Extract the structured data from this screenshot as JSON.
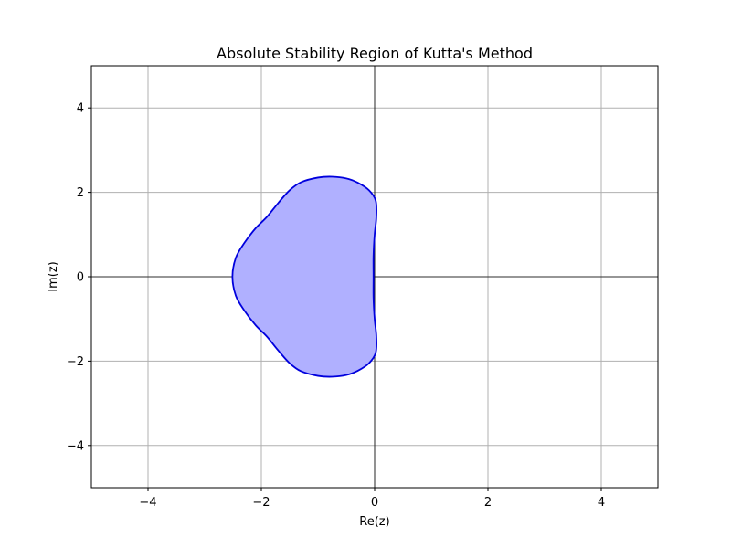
{
  "chart_data": {
    "type": "area",
    "title": "Absolute Stability Region of Kutta's Method",
    "xlabel": "Re(z)",
    "ylabel": "Im(z)",
    "xlim": [
      -5,
      5
    ],
    "ylim": [
      -5,
      5
    ],
    "xticks": [
      -4,
      -2,
      0,
      2,
      4
    ],
    "yticks": [
      -4,
      -2,
      0,
      2,
      4
    ],
    "xtick_labels": [
      "−4",
      "−2",
      "0",
      "2",
      "4"
    ],
    "ytick_labels": [
      "−4",
      "−2",
      "0",
      "2",
      "4"
    ],
    "grid": true,
    "reference_lines": [
      0
    ],
    "fill_color": "#b0b0ff",
    "edge_color": "#0000dd",
    "series": [
      {
        "boundary": [
          [
            -2.51,
            0.0
          ],
          [
            -2.45,
            0.45
          ],
          [
            -2.3,
            0.8
          ],
          [
            -2.1,
            1.15
          ],
          [
            -1.9,
            1.42
          ],
          [
            -1.7,
            1.75
          ],
          [
            -1.5,
            2.05
          ],
          [
            -1.3,
            2.24
          ],
          [
            -1.0,
            2.35
          ],
          [
            -0.75,
            2.37
          ],
          [
            -0.5,
            2.33
          ],
          [
            -0.3,
            2.23
          ],
          [
            -0.1,
            2.05
          ],
          [
            0.02,
            1.8
          ],
          [
            0.03,
            1.4
          ],
          [
            0.0,
            1.0
          ],
          [
            -0.02,
            0.5
          ],
          [
            -0.02,
            0.0
          ],
          [
            -0.02,
            -0.5
          ],
          [
            0.0,
            -1.0
          ],
          [
            0.03,
            -1.4
          ],
          [
            0.02,
            -1.8
          ],
          [
            -0.1,
            -2.05
          ],
          [
            -0.3,
            -2.23
          ],
          [
            -0.5,
            -2.33
          ],
          [
            -0.75,
            -2.37
          ],
          [
            -1.0,
            -2.35
          ],
          [
            -1.3,
            -2.24
          ],
          [
            -1.5,
            -2.05
          ],
          [
            -1.7,
            -1.75
          ],
          [
            -1.9,
            -1.42
          ],
          [
            -2.1,
            -1.15
          ],
          [
            -2.3,
            -0.8
          ],
          [
            -2.45,
            -0.45
          ]
        ]
      }
    ]
  }
}
